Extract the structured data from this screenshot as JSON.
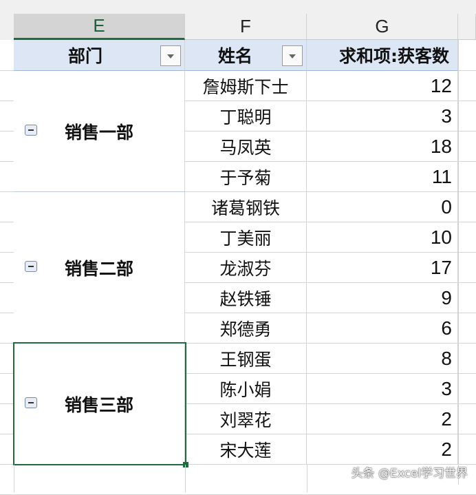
{
  "columns": [
    {
      "letter": "E",
      "selected": true
    },
    {
      "letter": "F",
      "selected": false
    },
    {
      "letter": "G",
      "selected": false
    }
  ],
  "pivot": {
    "headers": {
      "dept": "部门",
      "name": "姓名",
      "value": "求和项:获客数"
    },
    "groups": [
      {
        "dept": "销售一部",
        "expanded": true,
        "rows": [
          {
            "name": "詹姆斯下士",
            "value": "12"
          },
          {
            "name": "丁聪明",
            "value": "3"
          },
          {
            "name": "马凤英",
            "value": "18"
          },
          {
            "name": "于予菊",
            "value": "11"
          }
        ]
      },
      {
        "dept": "销售二部",
        "expanded": true,
        "rows": [
          {
            "name": "诸葛钢铁",
            "value": "0"
          },
          {
            "name": "丁美丽",
            "value": "10"
          },
          {
            "name": "龙淑芬",
            "value": "17"
          },
          {
            "name": "赵铁锤",
            "value": "9"
          },
          {
            "name": "郑德勇",
            "value": "6"
          }
        ]
      },
      {
        "dept": "销售三部",
        "expanded": true,
        "selected": true,
        "rows": [
          {
            "name": "王钢蛋",
            "value": "8"
          },
          {
            "name": "陈小娟",
            "value": "3"
          },
          {
            "name": "刘翠花",
            "value": "2"
          },
          {
            "name": "宋大莲",
            "value": "2"
          }
        ]
      }
    ]
  },
  "watermark": "头条 @Excel学习世界",
  "colors": {
    "accent": "#1e6b3c",
    "header_bg": "#dce6f4"
  }
}
